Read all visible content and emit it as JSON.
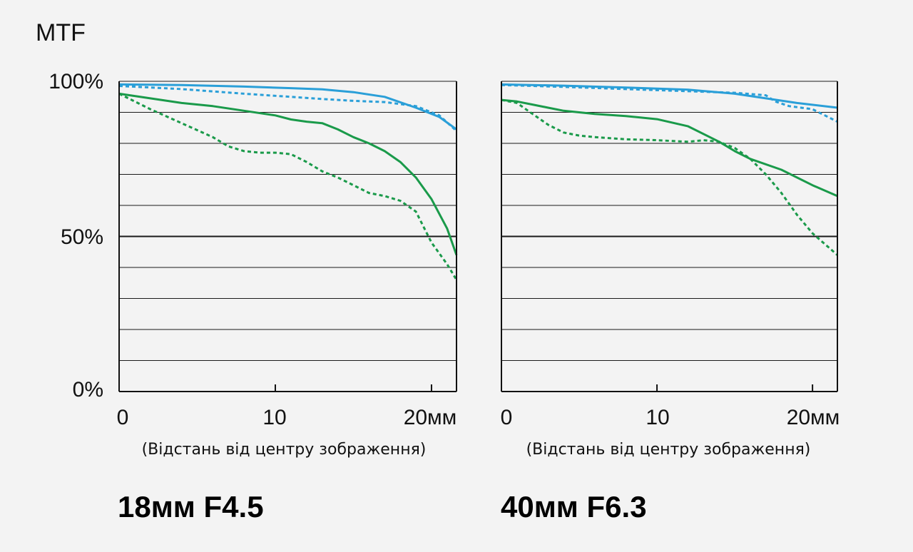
{
  "chart_data": [
    {
      "type": "line",
      "ylabel": "MTF",
      "title": "18мм F4.5",
      "xlabel": "(Відстань від центру зображення)",
      "x_ticks": [
        "0",
        "10",
        "20мм"
      ],
      "y_ticks": [
        "0%",
        "50%",
        "100%"
      ],
      "xlim": [
        0,
        21.6
      ],
      "ylim": [
        0,
        100
      ],
      "grid": true,
      "colors": {
        "blue": "#2a9fd8",
        "green": "#1a9a4a"
      },
      "series": [
        {
          "color": "blue",
          "style": "solid",
          "x": [
            0,
            4,
            8,
            11,
            13,
            15,
            17,
            19,
            20.5,
            21.6
          ],
          "y": [
            99,
            98.8,
            98.3,
            97.8,
            97.4,
            96.5,
            95,
            91.5,
            88.5,
            84.5
          ]
        },
        {
          "color": "blue",
          "style": "dotted",
          "x": [
            0,
            4,
            8,
            11,
            13,
            15,
            17,
            19,
            20.5,
            21.6
          ],
          "y": [
            98.5,
            97.5,
            96,
            95,
            94.3,
            93.7,
            93.3,
            92,
            89,
            84
          ]
        },
        {
          "color": "green",
          "style": "solid",
          "x": [
            0,
            2,
            4,
            6,
            8,
            10,
            11,
            12,
            13,
            14,
            15,
            16,
            17,
            18,
            19,
            20,
            21,
            21.6
          ],
          "y": [
            96,
            94.5,
            93,
            92,
            90.5,
            89,
            87.7,
            87,
            86.5,
            84.5,
            82,
            80,
            77.5,
            74,
            69,
            62,
            52.5,
            44
          ]
        },
        {
          "color": "green",
          "style": "dotted",
          "x": [
            0,
            2,
            4,
            6,
            7,
            8,
            9,
            10,
            11,
            12,
            13,
            14,
            15,
            16,
            17,
            18,
            19,
            20,
            21,
            21.6
          ],
          "y": [
            96,
            91,
            86.5,
            82,
            79,
            77.5,
            77,
            77,
            76.5,
            74,
            71,
            69,
            66.5,
            64,
            63,
            61.5,
            58,
            48,
            41,
            36
          ]
        }
      ]
    },
    {
      "type": "line",
      "title": "40мм F6.3",
      "xlabel": "(Відстань від центру зображення)",
      "x_ticks": [
        "0",
        "10",
        "20мм"
      ],
      "xlim": [
        0,
        21.6
      ],
      "ylim": [
        0,
        100
      ],
      "grid": true,
      "colors": {
        "blue": "#2a9fd8",
        "green": "#1a9a4a"
      },
      "series": [
        {
          "color": "blue",
          "style": "solid",
          "x": [
            0,
            4,
            8,
            12,
            15,
            17,
            19,
            21.6
          ],
          "y": [
            99,
            98.6,
            98,
            97.3,
            96,
            94.5,
            93,
            91.5
          ]
        },
        {
          "color": "blue",
          "style": "dotted",
          "x": [
            0,
            4,
            8,
            12,
            15,
            17,
            17.6,
            18.5,
            20,
            21.6
          ],
          "y": [
            98.8,
            98.2,
            97.5,
            96.8,
            96.3,
            95.5,
            93.5,
            92,
            91,
            87
          ]
        },
        {
          "color": "green",
          "style": "solid",
          "x": [
            0,
            1,
            2,
            3,
            4,
            5,
            6,
            8,
            10,
            12,
            14,
            15,
            16,
            18,
            20,
            21.6
          ],
          "y": [
            94,
            93.5,
            92.5,
            91.5,
            90.5,
            90,
            89.5,
            88.8,
            87.8,
            85.5,
            80.5,
            77.5,
            75,
            71.5,
            66.5,
            63
          ]
        },
        {
          "color": "green",
          "style": "dotted",
          "x": [
            0,
            1,
            2,
            3,
            4,
            5,
            6,
            8,
            10,
            12,
            13,
            14,
            15,
            16,
            17,
            18,
            19,
            20,
            21.6
          ],
          "y": [
            94,
            93,
            89.5,
            86,
            83.5,
            82.5,
            82,
            81.3,
            81,
            80.5,
            81,
            80.5,
            78.5,
            75,
            70,
            64,
            57,
            51,
            44
          ]
        }
      ]
    }
  ]
}
